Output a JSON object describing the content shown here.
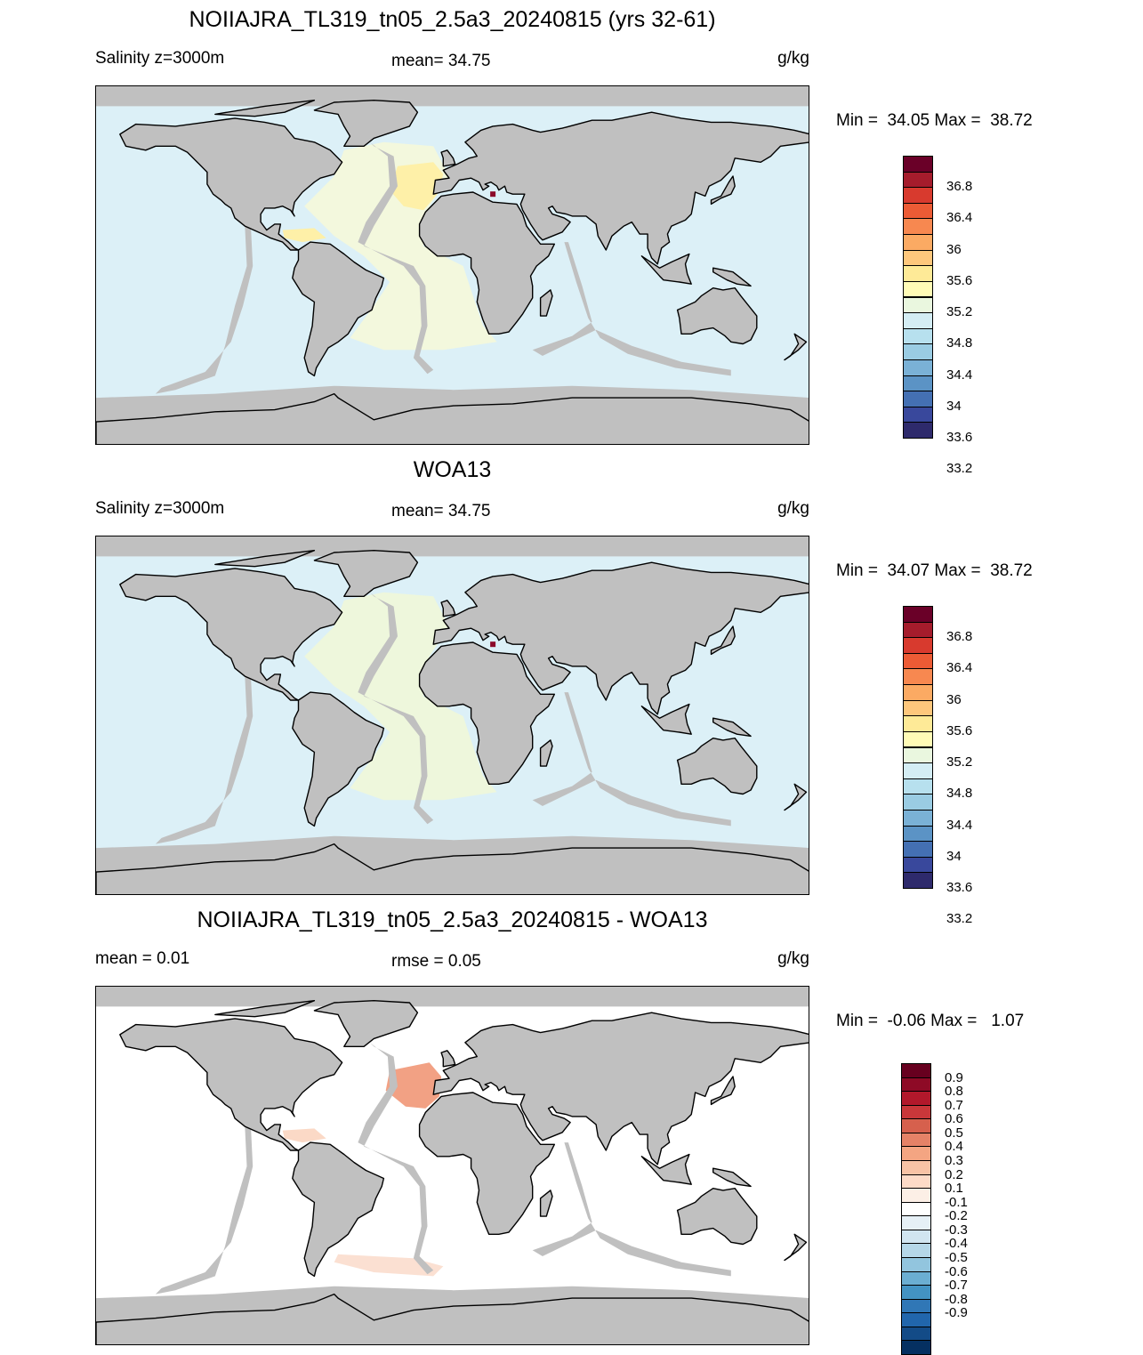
{
  "panels": [
    {
      "title": "NOIIAJRA_TL319_tn05_2.5a3_20240815 (yrs 32-61)",
      "left_label": "Salinity z=3000m",
      "mid_label": "mean=  34.75",
      "units": "g/kg",
      "minmax": "Min =  34.05 Max =  38.72",
      "colorbar": {
        "colors": [
          "#6a0028",
          "#a51c2c",
          "#d83a2e",
          "#ec5b35",
          "#f78850",
          "#fbaa63",
          "#fec77c",
          "#feea97",
          "#fffbb6",
          "#eaf7df",
          "#d4edf4",
          "#b7e0ee",
          "#9acce3",
          "#7ab1d6",
          "#5b93c5",
          "#4470b3",
          "#39489c",
          "#2e2a6c"
        ],
        "labels": [
          "36.8",
          "36.4",
          "36",
          "35.6",
          "35.2",
          "34.8",
          "34.4",
          "34",
          "33.6",
          "33.2"
        ]
      },
      "ocean_color": "#dcf0f7",
      "anomalies": [
        {
          "kind": "atlantic_band",
          "color": "#f3f8dd"
        },
        {
          "kind": "iberia_patch",
          "color": "#fef0a8"
        },
        {
          "kind": "caribbean",
          "color": "#fef0a8"
        },
        {
          "kind": "med_point",
          "color": "#8b0a2a"
        }
      ]
    },
    {
      "title": "WOA13",
      "left_label": "Salinity z=3000m",
      "mid_label": "mean=  34.75",
      "units": "g/kg",
      "minmax": "Min =  34.07 Max =  38.72",
      "colorbar": {
        "colors": [
          "#6a0028",
          "#a51c2c",
          "#d83a2e",
          "#ec5b35",
          "#f78850",
          "#fbaa63",
          "#fec77c",
          "#feea97",
          "#fffbb6",
          "#eaf7df",
          "#d4edf4",
          "#b7e0ee",
          "#9acce3",
          "#7ab1d6",
          "#5b93c5",
          "#4470b3",
          "#39489c",
          "#2e2a6c"
        ],
        "labels": [
          "36.8",
          "36.4",
          "36",
          "35.6",
          "35.2",
          "34.8",
          "34.4",
          "34",
          "33.6",
          "33.2"
        ]
      },
      "ocean_color": "#dcf0f7",
      "anomalies": [
        {
          "kind": "atlantic_band",
          "color": "#eef7dc"
        },
        {
          "kind": "med_point",
          "color": "#8b0a2a"
        }
      ]
    },
    {
      "title": "NOIIAJRA_TL319_tn05_2.5a3_20240815 - WOA13",
      "left_label": "mean =   0.01",
      "mid_label": "rmse =   0.05",
      "units": "g/kg",
      "minmax": "Min =  -0.06 Max =   1.07",
      "colorbar": {
        "colors": [
          "#67001f",
          "#8e0a26",
          "#b2182b",
          "#c9373a",
          "#d6604d",
          "#e58267",
          "#f4a582",
          "#f8c3a5",
          "#fddbc7",
          "#fcefe6",
          "#ffffff",
          "#e6f0f6",
          "#d1e5f0",
          "#b5d7e8",
          "#92c5de",
          "#6baed2",
          "#4393c3",
          "#3077b6",
          "#2166ac",
          "#134b87",
          "#053061"
        ],
        "labels": [
          "0.9",
          "0.8",
          "0.7",
          "0.6",
          "0.5",
          "0.4",
          "0.3",
          "0.2",
          "0.1",
          "-0.1",
          "-0.2",
          "-0.3",
          "-0.4",
          "-0.5",
          "-0.6",
          "-0.7",
          "-0.8",
          "-0.9"
        ]
      },
      "ocean_color": "#ffffff",
      "anomalies": [
        {
          "kind": "iberia_diff",
          "color": "#f2a184"
        },
        {
          "kind": "south_atl_band",
          "color": "#fbe0d2"
        },
        {
          "kind": "caribbean",
          "color": "#fbd9c6"
        }
      ]
    }
  ]
}
